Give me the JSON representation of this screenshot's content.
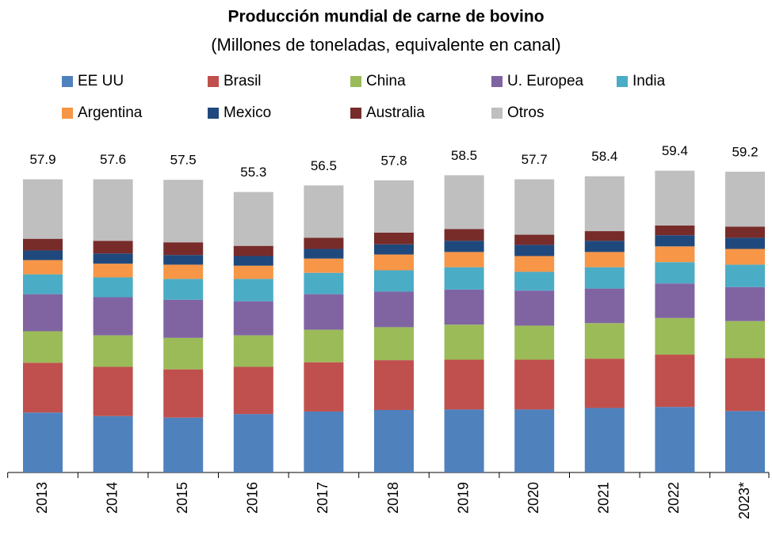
{
  "chart_data": {
    "type": "stacked_bar",
    "title": "Producción mundial de carne de bovino",
    "subtitle": "(Millones de toneladas, equivalente en canal)",
    "categories": [
      "2013",
      "2014",
      "2015",
      "2016",
      "2017",
      "2018",
      "2019",
      "2020",
      "2021",
      "2022",
      "2023*"
    ],
    "totals": [
      57.9,
      57.6,
      57.5,
      55.3,
      56.5,
      57.8,
      58.5,
      57.7,
      58.4,
      59.4,
      59.2
    ],
    "series": [
      {
        "name": "EE UU",
        "color": "#4f81bd",
        "values": [
          11.8,
          11.1,
          10.8,
          11.5,
          12.0,
          12.3,
          12.4,
          12.4,
          12.7,
          12.9,
          12.1
        ]
      },
      {
        "name": "Brasil",
        "color": "#c0504d",
        "values": [
          9.8,
          9.7,
          9.5,
          9.3,
          9.7,
          9.8,
          9.8,
          9.8,
          9.7,
          10.3,
          10.4
        ]
      },
      {
        "name": "China",
        "color": "#9bbb59",
        "values": [
          6.2,
          6.2,
          6.2,
          6.2,
          6.4,
          6.5,
          6.9,
          6.7,
          7.0,
          7.2,
          7.3
        ]
      },
      {
        "name": "U. Europea",
        "color": "#8064a2",
        "values": [
          7.3,
          7.5,
          7.5,
          6.7,
          7.0,
          7.0,
          6.9,
          6.9,
          6.8,
          6.8,
          6.7
        ]
      },
      {
        "name": "India",
        "color": "#4bacc6",
        "values": [
          3.9,
          3.9,
          4.1,
          4.4,
          4.2,
          4.2,
          4.4,
          3.7,
          4.2,
          4.2,
          4.4
        ]
      },
      {
        "name": "Argentina",
        "color": "#f79646",
        "values": [
          2.8,
          2.7,
          2.8,
          2.6,
          2.8,
          3.1,
          3.0,
          3.1,
          3.0,
          3.1,
          3.1
        ]
      },
      {
        "name": "Mexico",
        "color": "#1f497d",
        "values": [
          1.9,
          2.0,
          1.9,
          1.9,
          1.9,
          2.0,
          2.2,
          2.2,
          2.2,
          2.2,
          2.2
        ]
      },
      {
        "name": "Australia",
        "color": "#772c2a",
        "values": [
          2.3,
          2.5,
          2.5,
          2.0,
          2.2,
          2.3,
          2.3,
          2.0,
          1.9,
          1.9,
          2.2
        ]
      },
      {
        "name": "Otros",
        "color": "#bfbfbf",
        "values": [
          11.7,
          12.1,
          12.3,
          10.6,
          10.3,
          10.3,
          10.6,
          10.9,
          10.8,
          10.8,
          10.8
        ]
      }
    ]
  }
}
